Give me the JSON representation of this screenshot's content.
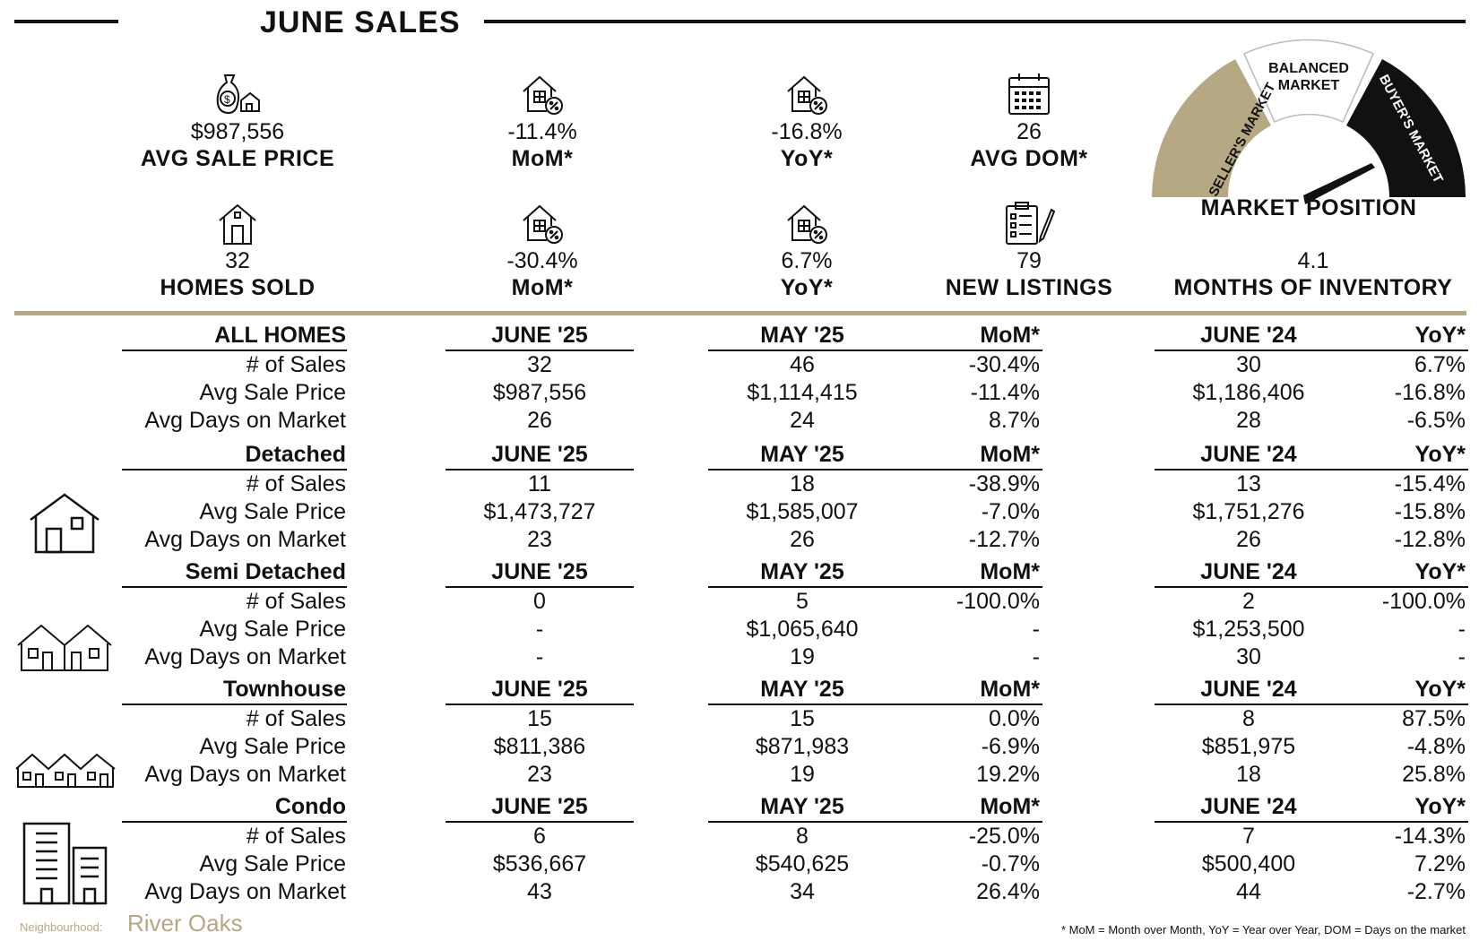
{
  "header": {
    "title": "JUNE SALES"
  },
  "stats_row1": [
    {
      "icon": "money-bag-house-icon",
      "value": "$987,556",
      "label": "AVG SALE PRICE"
    },
    {
      "icon": "house-percent-icon",
      "value": "-11.4%",
      "label": "MoM*"
    },
    {
      "icon": "house-percent-icon",
      "value": "-16.8%",
      "label": "YoY*"
    },
    {
      "icon": "calendar-icon",
      "value": "26",
      "label": "AVG DOM*"
    }
  ],
  "stats_row2": [
    {
      "icon": "house-icon",
      "value": "32",
      "label": "HOMES SOLD"
    },
    {
      "icon": "house-percent-icon",
      "value": "-30.4%",
      "label": "MoM*"
    },
    {
      "icon": "house-percent-icon",
      "value": "6.7%",
      "label": "YoY*"
    },
    {
      "icon": "clipboard-pen-icon",
      "value": "79",
      "label": "NEW LISTINGS"
    },
    {
      "icon": "",
      "value": "4.1",
      "label": "MONTHS OF INVENTORY"
    }
  ],
  "gauge": {
    "sellers": "SELLER'S MARKET",
    "balanced_line1": "BALANCED",
    "balanced_line2": "MARKET",
    "buyers": "BUYER'S MARKET",
    "label": "MARKET POSITION",
    "colors": {
      "sellers": "#b5a883",
      "balanced": "#ffffff",
      "buyers": "#111111"
    }
  },
  "table_sections": [
    {
      "name": "ALL HOMES",
      "icon": "",
      "headers": [
        "JUNE '25",
        "MAY '25",
        "MoM*",
        "JUNE '24",
        "YoY*"
      ],
      "rows": [
        {
          "label": "# of Sales",
          "cells": [
            "32",
            "46",
            "-30.4%",
            "30",
            "6.7%"
          ]
        },
        {
          "label": "Avg Sale Price",
          "cells": [
            "$987,556",
            "$1,114,415",
            "-11.4%",
            "$1,186,406",
            "-16.8%"
          ]
        },
        {
          "label": "Avg Days on Market",
          "cells": [
            "26",
            "24",
            "8.7%",
            "28",
            "-6.5%"
          ]
        }
      ]
    },
    {
      "name": "Detached",
      "icon": "detached-house-icon",
      "headers": [
        "JUNE '25",
        "MAY '25",
        "MoM*",
        "JUNE '24",
        "YoY*"
      ],
      "rows": [
        {
          "label": "# of Sales",
          "cells": [
            "11",
            "18",
            "-38.9%",
            "13",
            "-15.4%"
          ]
        },
        {
          "label": "Avg Sale Price",
          "cells": [
            "$1,473,727",
            "$1,585,007",
            "-7.0%",
            "$1,751,276",
            "-15.8%"
          ]
        },
        {
          "label": "Avg Days on Market",
          "cells": [
            "23",
            "26",
            "-12.7%",
            "26",
            "-12.8%"
          ]
        }
      ]
    },
    {
      "name": "Semi Detached",
      "icon": "semi-detached-house-icon",
      "headers": [
        "JUNE '25",
        "MAY '25",
        "MoM*",
        "JUNE '24",
        "YoY*"
      ],
      "rows": [
        {
          "label": "# of Sales",
          "cells": [
            "0",
            "5",
            "-100.0%",
            "2",
            "-100.0%"
          ]
        },
        {
          "label": "Avg Sale Price",
          "cells": [
            "-",
            "$1,065,640",
            "-",
            "$1,253,500",
            "-"
          ]
        },
        {
          "label": "Avg Days on Market",
          "cells": [
            "-",
            "19",
            "-",
            "30",
            "-"
          ]
        }
      ]
    },
    {
      "name": "Townhouse",
      "icon": "townhouse-icon",
      "headers": [
        "JUNE '25",
        "MAY '25",
        "MoM*",
        "JUNE '24",
        "YoY*"
      ],
      "rows": [
        {
          "label": "# of Sales",
          "cells": [
            "15",
            "15",
            "0.0%",
            "8",
            "87.5%"
          ]
        },
        {
          "label": "Avg Sale Price",
          "cells": [
            "$811,386",
            "$871,983",
            "-6.9%",
            "$851,975",
            "-4.8%"
          ]
        },
        {
          "label": "Avg Days on Market",
          "cells": [
            "23",
            "19",
            "19.2%",
            "18",
            "25.8%"
          ]
        }
      ]
    },
    {
      "name": "Condo",
      "icon": "condo-building-icon",
      "headers": [
        "JUNE '25",
        "MAY '25",
        "MoM*",
        "JUNE '24",
        "YoY*"
      ],
      "rows": [
        {
          "label": "# of Sales",
          "cells": [
            "6",
            "8",
            "-25.0%",
            "7",
            "-14.3%"
          ]
        },
        {
          "label": "Avg Sale Price",
          "cells": [
            "$536,667",
            "$540,625",
            "-0.7%",
            "$500,400",
            "7.2%"
          ]
        },
        {
          "label": "Avg Days on Market",
          "cells": [
            "43",
            "34",
            "26.4%",
            "44",
            "-2.7%"
          ]
        }
      ]
    }
  ],
  "footer": {
    "neighbourhood_label": "Neighbourhood:",
    "neighbourhood_name": "River Oaks",
    "note": "* MoM = Month over Month, YoY = Year over Year, DOM = Days on the market"
  },
  "accent_color": "#b5a883"
}
